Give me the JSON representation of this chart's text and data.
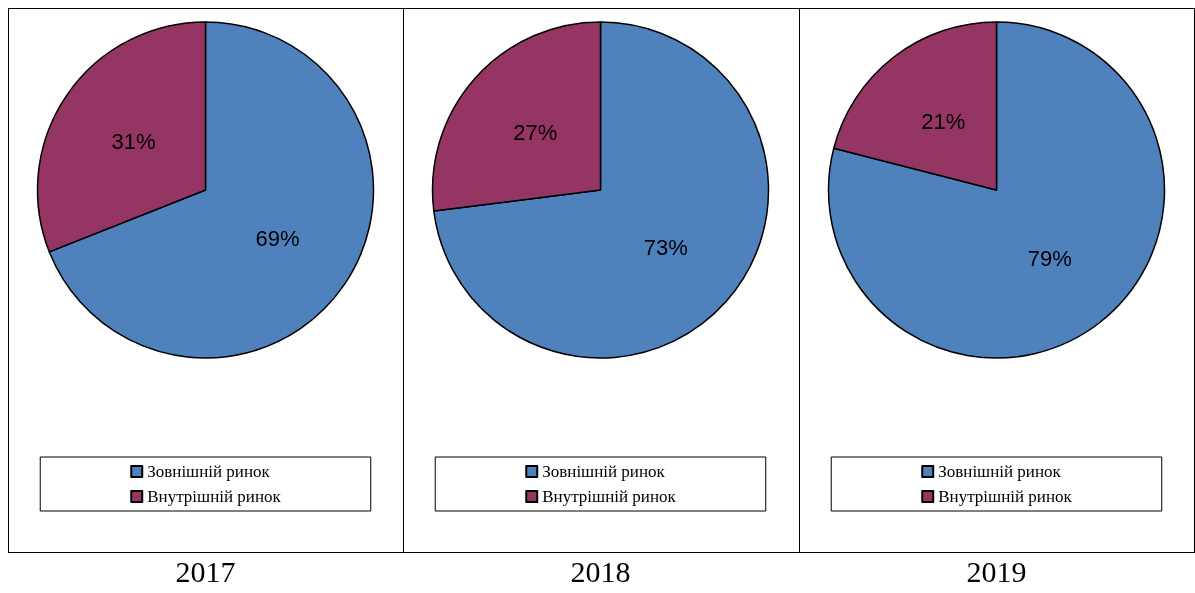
{
  "chart_data": [
    {
      "type": "pie",
      "title": "2017",
      "categories": [
        "Зовнішній ринок",
        "Внутрішній ринок"
      ],
      "values": [
        69,
        31
      ],
      "value_labels": [
        "69%",
        "31%"
      ],
      "colors": [
        "#4f81bd",
        "#953563"
      ],
      "legend": "bottom"
    },
    {
      "type": "pie",
      "title": "2018",
      "categories": [
        "Зовнішній ринок",
        "Внутрішній ринок"
      ],
      "values": [
        73,
        27
      ],
      "value_labels": [
        "73%",
        "27%"
      ],
      "colors": [
        "#4f81bd",
        "#953563"
      ],
      "legend": "bottom"
    },
    {
      "type": "pie",
      "title": "2019",
      "categories": [
        "Зовнішній ринок",
        "Внутрішній ринок"
      ],
      "values": [
        79,
        21
      ],
      "value_labels": [
        "79%",
        "21%"
      ],
      "colors": [
        "#4f81bd",
        "#953563"
      ],
      "legend": "bottom"
    }
  ]
}
